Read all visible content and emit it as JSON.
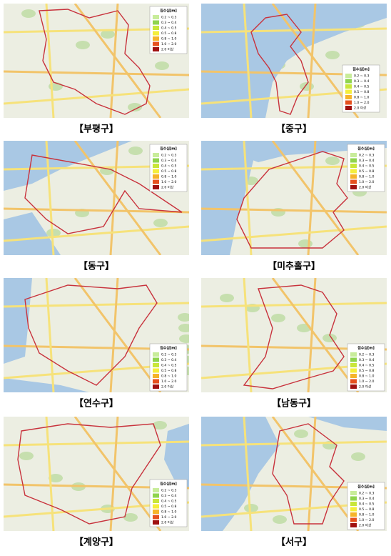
{
  "legend": {
    "title": "침수심[m]",
    "items": [
      "0.2 ~ 0.3",
      "0.3 ~ 0.4",
      "0.4 ~ 0.5",
      "0.5 ~ 0.8",
      "0.8 ~ 1.0",
      "1.0 ~ 2.0",
      "2.0 이상"
    ],
    "colors": [
      "#c8ec9a",
      "#8fd44e",
      "#c9e63a",
      "#f4ee3c",
      "#f5b42a",
      "#e6501e",
      "#a01010"
    ]
  },
  "panels": [
    {
      "caption": "【부평구】"
    },
    {
      "caption": "【중구】"
    },
    {
      "caption": "【동구】"
    },
    {
      "caption": "【미추홀구】"
    },
    {
      "caption": "【연수구】"
    },
    {
      "caption": "【남동구】"
    },
    {
      "caption": "【계양구】"
    },
    {
      "caption": "【서구】"
    }
  ]
}
